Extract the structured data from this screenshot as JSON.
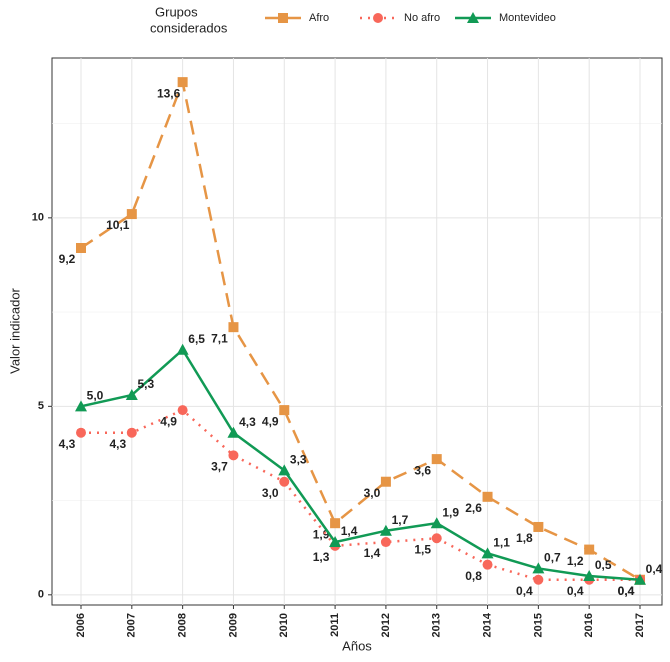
{
  "chart_data": {
    "type": "line",
    "legend_title": [
      "Grupos",
      "considerados"
    ],
    "x_label": "Años",
    "y_label": "Valor indicador",
    "categories": [
      "2006",
      "2007",
      "2008",
      "2009",
      "2010",
      "2011",
      "2012",
      "2013",
      "2014",
      "2015",
      "2016",
      "2017"
    ],
    "series": [
      {
        "name": "Afro",
        "color": "#e69545",
        "marker": "square",
        "dash": "14 8",
        "values": [
          9.2,
          10.1,
          13.6,
          7.1,
          4.9,
          1.9,
          3.0,
          3.6,
          2.6,
          1.8,
          1.2,
          0.4
        ],
        "value_labels": [
          "9,2",
          "10,1",
          "13,6",
          "7,1",
          "4,9",
          "1,9",
          "3,0",
          "3,6",
          "2,6",
          "1,8",
          "1,2",
          "0,4"
        ]
      },
      {
        "name": "No afro",
        "color": "#f8675a",
        "marker": "circle",
        "dash": "2 6",
        "values": [
          4.3,
          4.3,
          4.9,
          3.7,
          3.0,
          1.3,
          1.4,
          1.5,
          0.8,
          0.4,
          0.4,
          0.4
        ],
        "value_labels": [
          "4,3",
          "4,3",
          "4,9",
          "3,7",
          "3,0",
          "1,3",
          "1,4",
          "1,5",
          "0,8",
          "0,4",
          "0,4",
          "0,4"
        ]
      },
      {
        "name": "Montevideo",
        "color": "#119a55",
        "marker": "triangle",
        "dash": "none",
        "values": [
          5.0,
          5.3,
          6.5,
          4.3,
          3.3,
          1.4,
          1.7,
          1.9,
          1.1,
          0.7,
          0.5,
          0.4
        ],
        "value_labels": [
          "5,0",
          "5,3",
          "6,5",
          "4,3",
          "3,3",
          "1,4",
          "1,7",
          "1,9",
          "1,1",
          "0,7",
          "0,5",
          "0,4"
        ]
      }
    ],
    "ylim": [
      -0.27,
      14.24
    ],
    "yticks": [
      0,
      5,
      10
    ],
    "grid": true
  }
}
